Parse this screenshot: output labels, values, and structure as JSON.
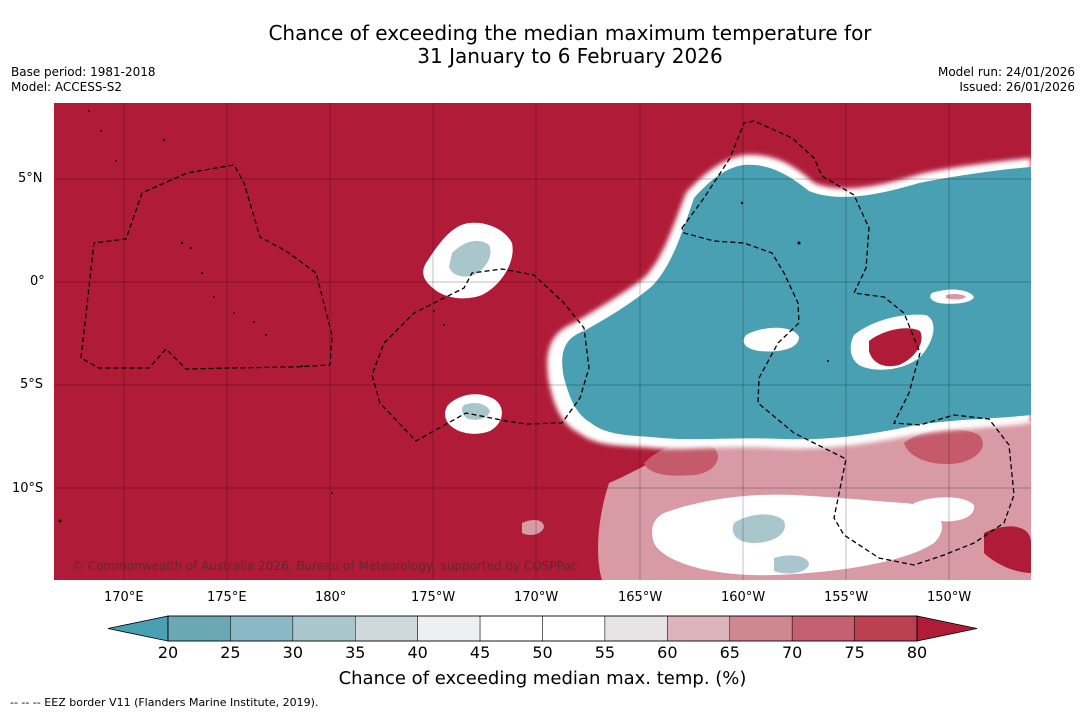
{
  "title": {
    "line1": "Chance of exceeding the median maximum temperature for",
    "line2": "31 January to 6 February 2026"
  },
  "meta_left": {
    "base_period": "Base period: 1981-2018",
    "model": "Model: ACCESS-S2"
  },
  "meta_right": {
    "model_run": "Model run: 24/01/2026",
    "issued": "Issued: 26/01/2026"
  },
  "map": {
    "lat_labels": [
      "5°N",
      "0°",
      "5°S",
      "10°S"
    ],
    "lon_labels": [
      "170°E",
      "175°E",
      "180°",
      "175°W",
      "170°W",
      "165°W",
      "160°W",
      "155°W",
      "150°W"
    ],
    "copyright": "© Commonwealth of Australia 2026, Bureau of Meteorology, supported by COSPPac"
  },
  "colorbar": {
    "ticks": [
      "20",
      "25",
      "30",
      "35",
      "40",
      "45",
      "50",
      "55",
      "60",
      "65",
      "70",
      "75",
      "80"
    ],
    "colors": [
      "#48a0b2",
      "#6aa8b6",
      "#8ab8c4",
      "#a9c6cc",
      "#cfd9dc",
      "#edf0f2",
      "#ffffff",
      "#ffffff",
      "#e8e4e6",
      "#dcb4bc",
      "#d08890",
      "#c46070",
      "#bc4050",
      "#b01c38"
    ],
    "title": "Chance of exceeding median max. temp. (%)"
  },
  "footnote": "-- -- -- EEZ border V11 (Flanders Marine Institute, 2019).",
  "colors": {
    "warm": "#b01c38",
    "cool": "#48a0b2",
    "neutral": "#ffffff"
  }
}
